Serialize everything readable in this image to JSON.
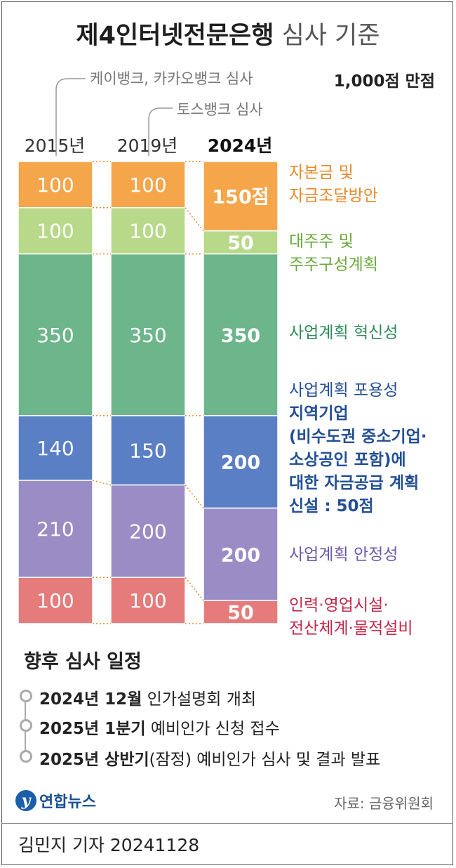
{
  "title": {
    "bold": "제4인터넷전문은행",
    "light": "심사 기준"
  },
  "notes": {
    "kbank_kakao": "케이뱅크, 카카오뱅크 심사",
    "toss": "토스뱅크 심사"
  },
  "max_label": "1,000점 만점",
  "chart_data": {
    "type": "stacked-bar",
    "categories": [
      "2015년",
      "2019년",
      "2024년"
    ],
    "series": [
      {
        "name": "자본금 및 자금조달방안",
        "values": [
          100,
          100,
          150
        ],
        "color": "#f5a54a",
        "label_color": "#e8892a"
      },
      {
        "name": "대주주 및 주주구성계획",
        "values": [
          100,
          100,
          50
        ],
        "color": "#b8d98a",
        "label_color": "#6aaa3a"
      },
      {
        "name": "사업계획 혁신성",
        "values": [
          350,
          350,
          350
        ],
        "color": "#6db58a",
        "label_color": "#2f8a5a"
      },
      {
        "name": "사업계획 포용성",
        "values": [
          140,
          150,
          200
        ],
        "color": "#5b7fc4",
        "label_color": "#234f96"
      },
      {
        "name": "사업계획 안정성",
        "values": [
          210,
          200,
          200
        ],
        "color": "#9a8cc4",
        "label_color": "#6b5aa8"
      },
      {
        "name": "인력·영업시설·전산체계·물적설비",
        "values": [
          100,
          100,
          50
        ],
        "color": "#e57b7b",
        "label_color": "#c4284a"
      }
    ],
    "value_labels_2024": [
      "150점",
      "50",
      "350",
      "200",
      "200",
      "50"
    ],
    "total": 1000
  },
  "categories_text": [
    {
      "lines": [
        "자본금 및",
        "자금조달방안"
      ]
    },
    {
      "lines": [
        "대주주 및",
        "주주구성계획"
      ]
    },
    {
      "lines": [
        "사업계획 혁신성"
      ]
    },
    {
      "lines": [
        "사업계획 포용성"
      ],
      "bold_lines": [
        "지역기업",
        "(비수도권 중소기업·",
        "소상공인 포함)에",
        "대한 자금공급 계획",
        "신설 : 50점"
      ]
    },
    {
      "lines": [
        "사업계획 안정성"
      ]
    },
    {
      "lines": [
        "인력·영업시설·",
        "전산체계·물적설비"
      ]
    }
  ],
  "schedule": {
    "title": "향후 심사 일정",
    "items": [
      {
        "bold": "2024년 12월",
        "text": " 인가설명회 개최"
      },
      {
        "bold": "2025년 1분기",
        "text": " 예비인가 신청 접수"
      },
      {
        "bold": "2025년 상반기",
        "text": "(잠정) 예비인가 심사 및 결과 발표"
      }
    ]
  },
  "logo": "연합뉴스",
  "source": "자료: 금융위원회",
  "credit": "김민지 기자  20241128"
}
